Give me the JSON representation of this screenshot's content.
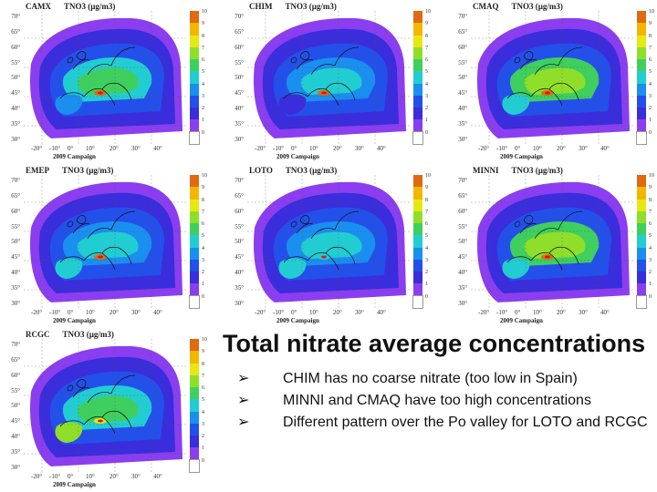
{
  "panels": [
    {
      "model": "CAMX",
      "species": "TNO3 (µg/m3)"
    },
    {
      "model": "CHIM",
      "species": "TNO3 (µg/m3)"
    },
    {
      "model": "CMAQ",
      "species": "TNO3 (µg/m3)"
    },
    {
      "model": "EMEP",
      "species": "TNO3 (µg/m3)"
    },
    {
      "model": "LOTO",
      "species": "TNO3 (µg/m3)"
    },
    {
      "model": "MINNI",
      "species": "TNO3 (µg/m3)"
    },
    {
      "model": "RCGC",
      "species": "TNO3 (µg/m3)"
    }
  ],
  "campaign_label": "2009 Campaign",
  "lat_labels": [
    "70°",
    "65°",
    "60°",
    "55°",
    "50°",
    "45°",
    "40°",
    "35°",
    "30°"
  ],
  "lon_labels": [
    "-20°",
    "-10°",
    "0°",
    "10°",
    "20°",
    "30°",
    "40°"
  ],
  "colorbar": {
    "labels": [
      "10",
      "9",
      "8",
      "7",
      "6",
      "5",
      "4",
      "3",
      "2",
      "1",
      "0"
    ],
    "colors": [
      "#e06a10",
      "#f2b700",
      "#e7e812",
      "#8fdf2a",
      "#3fcf5e",
      "#22cdd2",
      "#1a8ff0",
      "#2450ea",
      "#3a2ddb",
      "#8a3ef0",
      "#ffffff"
    ]
  },
  "heading": "Total nitrate average concentrations",
  "bullet_icon": "arrow-bullet-icon",
  "bullets": [
    "CHIM has no coarse nitrate (too low in Spain)",
    "MINNI and CMAQ have too high concentrations",
    "Different pattern over the Po valley for LOTO and RCGC"
  ]
}
